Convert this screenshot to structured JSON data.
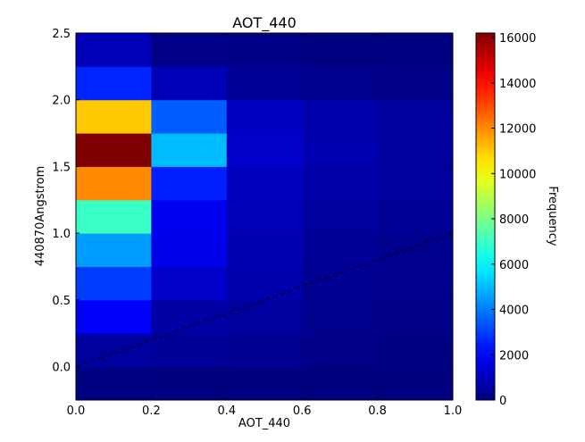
{
  "chart_data": {
    "type": "heatmap",
    "title": "AOT_440",
    "xlabel": "AOT_440",
    "ylabel": "440870Angstrom",
    "xlim": [
      0.0,
      1.0
    ],
    "ylim": [
      -0.25,
      2.5
    ],
    "x_edges": [
      0.0,
      0.2,
      0.4,
      0.6,
      0.8,
      1.0
    ],
    "y_edges": [
      -0.25,
      0.0,
      0.25,
      0.5,
      0.75,
      1.0,
      1.25,
      1.5,
      1.75,
      2.0,
      2.25,
      2.5
    ],
    "x_ticks": [
      "0.0",
      "0.2",
      "0.4",
      "0.6",
      "0.8",
      "1.0"
    ],
    "y_ticks": [
      "0.0",
      "0.5",
      "1.0",
      "1.5",
      "2.0",
      "2.5"
    ],
    "counts": [
      [
        80,
        20,
        10,
        5,
        0
      ],
      [
        500,
        400,
        300,
        150,
        60
      ],
      [
        2000,
        600,
        500,
        250,
        150
      ],
      [
        3000,
        1200,
        700,
        300,
        200
      ],
      [
        4500,
        1700,
        800,
        400,
        250
      ],
      [
        7000,
        1800,
        900,
        500,
        350
      ],
      [
        12000,
        2500,
        1000,
        650,
        450
      ],
      [
        16200,
        5000,
        1200,
        800,
        500
      ],
      [
        11000,
        3500,
        1100,
        700,
        450
      ],
      [
        2600,
        900,
        400,
        250,
        150
      ],
      [
        900,
        150,
        100,
        60,
        40
      ]
    ],
    "colorbar": {
      "label": "Frequency",
      "min": 0,
      "max": 16200,
      "ticks": [
        0,
        2000,
        4000,
        6000,
        8000,
        10000,
        12000,
        14000,
        16000
      ],
      "colormap": "jet"
    },
    "reference_line": {
      "style": "dashed",
      "color": "#000000",
      "x": [
        0.0,
        1.0
      ],
      "y": [
        0.0,
        1.0
      ]
    }
  }
}
